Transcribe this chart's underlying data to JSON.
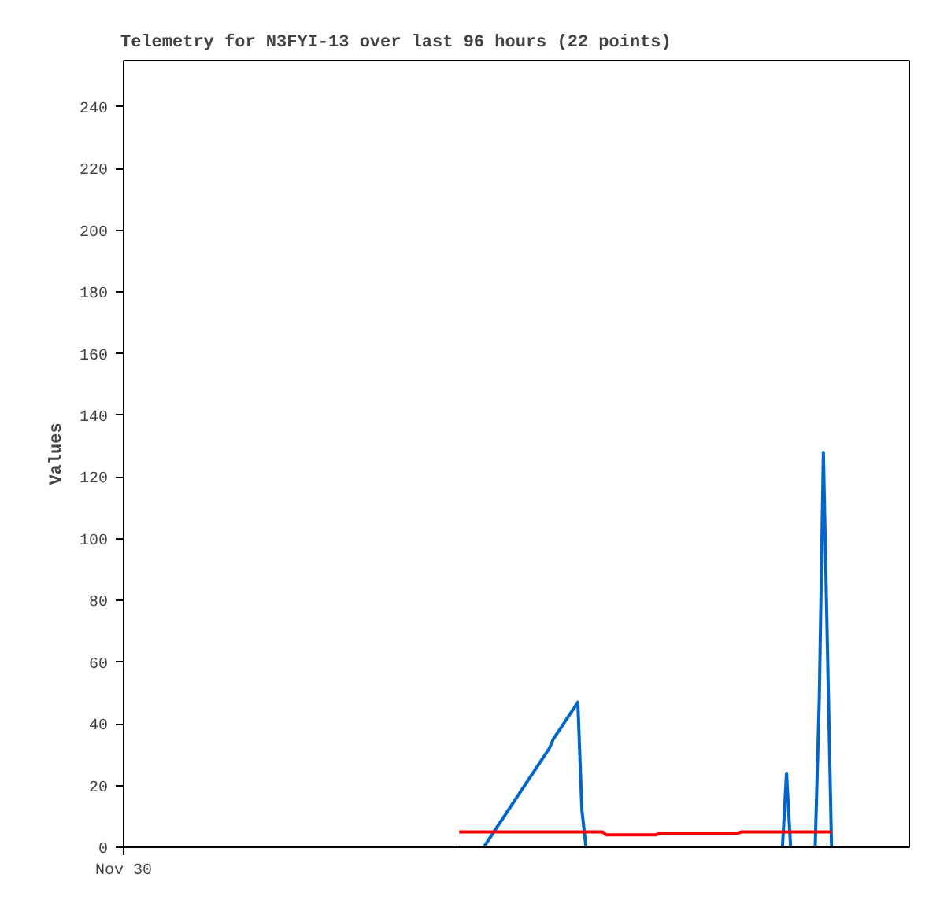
{
  "chart_data": {
    "type": "line",
    "title": "Telemetry for N3FYI-13 over last 96 hours (22 points)",
    "ylabel": "Values",
    "categories": [
      "Nov 30",
      null,
      null,
      null,
      null,
      null,
      null,
      null,
      null,
      null,
      null,
      null,
      null,
      null,
      null,
      null,
      null,
      null,
      null,
      null,
      null,
      null,
      null,
      null,
      null,
      null,
      null,
      null,
      null,
      null,
      null,
      null,
      null,
      null,
      null,
      null,
      null,
      null,
      null,
      null,
      null,
      null,
      null,
      null,
      null,
      null,
      null,
      null,
      null,
      null,
      null,
      null,
      null,
      null,
      null,
      null,
      null,
      null,
      null,
      null,
      null,
      null,
      null,
      null,
      null,
      null,
      null,
      null,
      null,
      null,
      null,
      null,
      null,
      null,
      null,
      null,
      null,
      null,
      null,
      null,
      null,
      null,
      null,
      null,
      null,
      null,
      null,
      null,
      null,
      null,
      null,
      null,
      null,
      null,
      null,
      null,
      null,
      null,
      null,
      null,
      null,
      null,
      null,
      null,
      null,
      null,
      null,
      null,
      null,
      null,
      null,
      null,
      null,
      null,
      null,
      null,
      null,
      null,
      null,
      null,
      null,
      null,
      null,
      null,
      null,
      null,
      null,
      null,
      null,
      null,
      null,
      null,
      null,
      null,
      null,
      null,
      null,
      null,
      null,
      null,
      null,
      null,
      null,
      null,
      null,
      null,
      null,
      null,
      null,
      null,
      null,
      null,
      null,
      null,
      null,
      null,
      null,
      null,
      null,
      null,
      null,
      null,
      null,
      null,
      null,
      null,
      null,
      null,
      null,
      null,
      null,
      null,
      null,
      null,
      null,
      null,
      null,
      null,
      null,
      null,
      null,
      null,
      null,
      null,
      null,
      null,
      null,
      null,
      null,
      null,
      null,
      null,
      null
    ],
    "ylim": [
      0,
      255
    ],
    "yticks": [
      0,
      20,
      40,
      60,
      80,
      100,
      120,
      140,
      160,
      180,
      200,
      220,
      240
    ],
    "grid": false,
    "marker": "none",
    "line_style": "solid",
    "series": [
      {
        "color": "#000000",
        "values": [
          null,
          null,
          null,
          null,
          null,
          null,
          null,
          null,
          null,
          null,
          null,
          null,
          null,
          null,
          null,
          null,
          null,
          null,
          null,
          null,
          null,
          null,
          null,
          null,
          null,
          null,
          null,
          null,
          null,
          null,
          null,
          null,
          null,
          null,
          null,
          null,
          null,
          null,
          null,
          null,
          null,
          null,
          null,
          null,
          null,
          null,
          null,
          null,
          null,
          null,
          null,
          null,
          null,
          null,
          null,
          null,
          null,
          null,
          null,
          null,
          null,
          null,
          null,
          null,
          null,
          null,
          null,
          null,
          null,
          null,
          null,
          null,
          null,
          null,
          null,
          null,
          null,
          null,
          null,
          null,
          null,
          null,
          0,
          0,
          0,
          0,
          0,
          0,
          0,
          0,
          0,
          0,
          0,
          0,
          0,
          0,
          0,
          0,
          0,
          0,
          0,
          0,
          0,
          0,
          0,
          0,
          0,
          0,
          0,
          0,
          0,
          0,
          0,
          0,
          0,
          0,
          0,
          0,
          0,
          0,
          0,
          0,
          0,
          0,
          0,
          0,
          0,
          0,
          0,
          0,
          0,
          0,
          0,
          0,
          0,
          0,
          0,
          0,
          0,
          0,
          0,
          0,
          0,
          0,
          0,
          0,
          0,
          0,
          0,
          0,
          0,
          0,
          0,
          0,
          0,
          0,
          0,
          0,
          0,
          0,
          0,
          0,
          0,
          0,
          0,
          0,
          0,
          0,
          0,
          0,
          0,
          0,
          0,
          0,
          null,
          null,
          null,
          null,
          null,
          null,
          null,
          null,
          null,
          null,
          null,
          null,
          null,
          null,
          null,
          null,
          null,
          null,
          null
        ]
      },
      {
        "color": "#ff0000",
        "values": [
          null,
          null,
          null,
          null,
          null,
          null,
          null,
          null,
          null,
          null,
          null,
          null,
          null,
          null,
          null,
          null,
          null,
          null,
          null,
          null,
          null,
          null,
          null,
          null,
          null,
          null,
          null,
          null,
          null,
          null,
          null,
          null,
          null,
          null,
          null,
          null,
          null,
          null,
          null,
          null,
          null,
          null,
          null,
          null,
          null,
          null,
          null,
          null,
          null,
          null,
          null,
          null,
          null,
          null,
          null,
          null,
          null,
          null,
          null,
          null,
          null,
          null,
          null,
          null,
          null,
          null,
          null,
          null,
          null,
          null,
          null,
          null,
          null,
          null,
          null,
          null,
          null,
          null,
          null,
          null,
          null,
          null,
          5,
          5,
          5,
          5,
          5,
          5,
          5,
          5,
          5,
          5,
          5,
          5,
          5,
          5,
          5,
          5,
          5,
          5,
          5,
          5,
          5,
          5,
          5,
          5,
          5,
          5,
          5,
          5,
          5,
          5,
          5,
          5,
          5,
          5,
          5,
          5,
          4,
          4,
          4,
          4,
          4,
          4,
          4,
          4,
          4,
          4,
          4,
          4,
          4,
          4.5,
          4.5,
          4.5,
          4.5,
          4.5,
          4.5,
          4.5,
          4.5,
          4.5,
          4.5,
          4.5,
          4.5,
          4.5,
          4.5,
          4.5,
          4.5,
          4.5,
          4.5,
          4.5,
          4.5,
          5,
          5,
          5,
          5,
          5,
          5,
          5,
          5,
          5,
          5,
          5,
          5,
          5,
          5,
          5,
          5,
          5,
          5,
          5,
          5,
          5,
          5,
          5,
          null,
          null,
          null,
          null,
          null,
          null,
          null,
          null,
          null,
          null,
          null,
          null,
          null,
          null,
          null,
          null,
          null,
          null,
          null
        ]
      },
      {
        "color": "#0066cc",
        "values": [
          null,
          null,
          null,
          null,
          null,
          null,
          null,
          null,
          null,
          null,
          null,
          null,
          null,
          null,
          null,
          null,
          null,
          null,
          null,
          null,
          null,
          null,
          null,
          null,
          null,
          null,
          null,
          null,
          null,
          null,
          null,
          null,
          null,
          null,
          null,
          null,
          null,
          null,
          null,
          null,
          null,
          null,
          null,
          null,
          null,
          null,
          null,
          null,
          null,
          null,
          null,
          null,
          null,
          null,
          null,
          null,
          null,
          null,
          null,
          null,
          null,
          null,
          null,
          null,
          null,
          null,
          null,
          null,
          null,
          null,
          null,
          null,
          null,
          null,
          null,
          null,
          null,
          null,
          null,
          null,
          null,
          null,
          null,
          null,
          null,
          null,
          null,
          null,
          0,
          2,
          4,
          6,
          8,
          10,
          12,
          14,
          16,
          18,
          20,
          22,
          24,
          26,
          28,
          30,
          32,
          35,
          37,
          39,
          41,
          43,
          45,
          47,
          12,
          0,
          0,
          null,
          null,
          null,
          null,
          null,
          null,
          null,
          null,
          null,
          null,
          null,
          null,
          null,
          null,
          null,
          null,
          null,
          null,
          null,
          null,
          null,
          null,
          null,
          null,
          null,
          null,
          null,
          null,
          null,
          null,
          null,
          null,
          null,
          null,
          null,
          null,
          null,
          null,
          null,
          null,
          null,
          null,
          null,
          null,
          null,
          null,
          0,
          24,
          0,
          null,
          null,
          null,
          null,
          null,
          0,
          48,
          128,
          64,
          0,
          null,
          null,
          null,
          null,
          null,
          null,
          null,
          null,
          null,
          null,
          null,
          null,
          null,
          null,
          null,
          null,
          null,
          null,
          null
        ]
      }
    ]
  }
}
